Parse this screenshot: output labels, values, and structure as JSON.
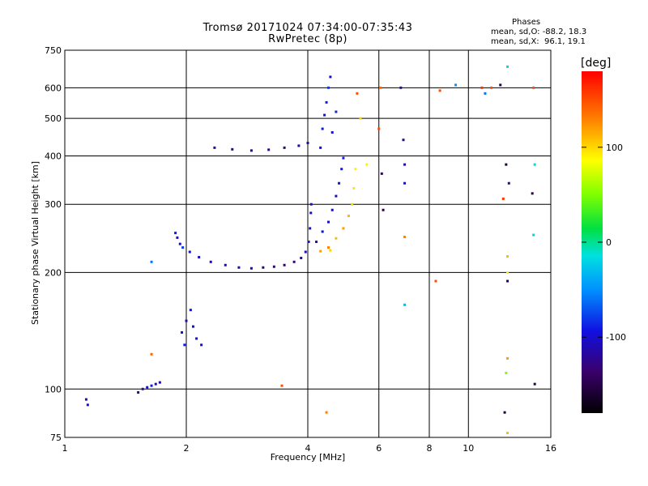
{
  "title_line1": "Tromsø 20171024 07:34:00-07:35:43",
  "title_line2": "RwPretec (8p)",
  "stats": {
    "heading": "Phases",
    "o_mode": "mean, sd,O: -88.2, 18.3",
    "x_mode": "mean, sd,X:  96.1, 19.1"
  },
  "colorbar": {
    "unit_label": "[deg]",
    "ticks": [
      "100",
      "0",
      "-100"
    ],
    "tick_values": [
      100,
      0,
      -100
    ],
    "range": [
      -180,
      180
    ]
  },
  "chart_data": {
    "type": "scatter",
    "xlabel": "Frequency [MHz]",
    "ylabel": "Stationary phase Virtual Height [km]",
    "x_scale": "log",
    "y_scale": "log",
    "xlim": [
      1,
      16
    ],
    "ylim": [
      75,
      750
    ],
    "x_ticks": [
      1,
      2,
      4,
      6,
      8,
      10,
      16
    ],
    "x_tick_labels": [
      "1",
      "2",
      "4",
      "6",
      "8",
      "10",
      "16"
    ],
    "y_ticks": [
      75,
      100,
      200,
      300,
      400,
      500,
      600,
      750
    ],
    "y_tick_labels": [
      "75",
      "100",
      "200",
      "300",
      "400",
      "500",
      "600",
      "750"
    ],
    "grid": true,
    "color_by": "phase [deg]",
    "points": [
      [
        1.13,
        94,
        -110
      ],
      [
        1.14,
        91,
        -100
      ],
      [
        1.52,
        98,
        -120
      ],
      [
        1.56,
        100,
        -110
      ],
      [
        1.6,
        101,
        -100
      ],
      [
        1.64,
        102,
        -90
      ],
      [
        1.68,
        103,
        -105
      ],
      [
        1.72,
        104,
        -115
      ],
      [
        1.64,
        213,
        -60
      ],
      [
        1.64,
        123,
        140
      ],
      [
        1.88,
        253,
        -90
      ],
      [
        1.9,
        246,
        -110
      ],
      [
        1.93,
        237,
        -100
      ],
      [
        1.96,
        232,
        -80
      ],
      [
        2.04,
        226,
        -95
      ],
      [
        2.15,
        219,
        -100
      ],
      [
        2.3,
        213,
        -110
      ],
      [
        2.5,
        209,
        -115
      ],
      [
        2.7,
        206,
        -110
      ],
      [
        2.9,
        205,
        -120
      ],
      [
        3.1,
        206,
        -130
      ],
      [
        3.3,
        207,
        -125
      ],
      [
        3.5,
        209,
        -140
      ],
      [
        3.7,
        213,
        -130
      ],
      [
        3.85,
        218,
        -120
      ],
      [
        3.95,
        226,
        -110
      ],
      [
        4.02,
        240,
        -100
      ],
      [
        4.05,
        260,
        -100
      ],
      [
        4.07,
        285,
        -95
      ],
      [
        4.08,
        300,
        -100
      ],
      [
        4.2,
        240,
        -100
      ],
      [
        4.35,
        255,
        -95
      ],
      [
        4.5,
        270,
        -100
      ],
      [
        4.6,
        290,
        -100
      ],
      [
        4.7,
        315,
        -100
      ],
      [
        4.78,
        340,
        -95
      ],
      [
        4.85,
        370,
        -90
      ],
      [
        4.9,
        395,
        -90
      ],
      [
        1.95,
        140,
        -100
      ],
      [
        2.0,
        150,
        -110
      ],
      [
        2.05,
        160,
        -95
      ],
      [
        2.08,
        145,
        -105
      ],
      [
        2.12,
        135,
        -100
      ],
      [
        2.18,
        130,
        -110
      ],
      [
        1.98,
        130,
        -90
      ],
      [
        2.35,
        420,
        -110
      ],
      [
        2.6,
        416,
        -115
      ],
      [
        2.9,
        413,
        -120
      ],
      [
        3.2,
        415,
        -125
      ],
      [
        3.5,
        420,
        -130
      ],
      [
        3.8,
        425,
        -120
      ],
      [
        4.0,
        432,
        -110
      ],
      [
        4.3,
        420,
        -100
      ],
      [
        4.35,
        470,
        -90
      ],
      [
        4.4,
        510,
        -100
      ],
      [
        4.45,
        550,
        -90
      ],
      [
        4.5,
        600,
        -80
      ],
      [
        4.55,
        640,
        -100
      ],
      [
        4.6,
        460,
        -95
      ],
      [
        4.7,
        520,
        -85
      ],
      [
        4.3,
        227,
        120
      ],
      [
        4.5,
        232,
        130
      ],
      [
        4.7,
        245,
        110
      ],
      [
        4.9,
        260,
        120
      ],
      [
        5.05,
        280,
        110
      ],
      [
        5.15,
        300,
        100
      ],
      [
        5.2,
        330,
        95
      ],
      [
        5.25,
        370,
        90
      ],
      [
        4.55,
        228,
        100
      ],
      [
        6.0,
        470,
        150
      ],
      [
        6.05,
        600,
        140
      ],
      [
        6.1,
        360,
        -140
      ],
      [
        6.15,
        290,
        -150
      ],
      [
        6.8,
        600,
        -110
      ],
      [
        6.9,
        440,
        -120
      ],
      [
        6.95,
        380,
        -110
      ],
      [
        6.95,
        340,
        -100
      ],
      [
        6.95,
        247,
        130
      ],
      [
        6.95,
        165,
        -30
      ],
      [
        8.3,
        190,
        150
      ],
      [
        8.5,
        590,
        150
      ],
      [
        9.3,
        610,
        -50
      ],
      [
        10.8,
        600,
        160
      ],
      [
        11.0,
        580,
        -60
      ],
      [
        11.4,
        600,
        150
      ],
      [
        12.0,
        610,
        -150
      ],
      [
        12.5,
        680,
        -20
      ],
      [
        12.4,
        380,
        -160
      ],
      [
        12.6,
        340,
        -120
      ],
      [
        12.2,
        310,
        160
      ],
      [
        12.5,
        220,
        110
      ],
      [
        12.5,
        200,
        90
      ],
      [
        12.5,
        190,
        -150
      ],
      [
        12.5,
        120,
        120
      ],
      [
        12.4,
        110,
        50
      ],
      [
        12.3,
        87,
        -160
      ],
      [
        12.5,
        77,
        110
      ],
      [
        14.6,
        380,
        -20
      ],
      [
        14.4,
        320,
        -150
      ],
      [
        14.5,
        250,
        -20
      ],
      [
        14.6,
        103,
        -150
      ],
      [
        14.5,
        600,
        150
      ],
      [
        3.45,
        102,
        150
      ],
      [
        4.45,
        87,
        130
      ],
      [
        5.3,
        580,
        150
      ],
      [
        5.6,
        380,
        90
      ],
      [
        5.4,
        500,
        100
      ]
    ]
  }
}
